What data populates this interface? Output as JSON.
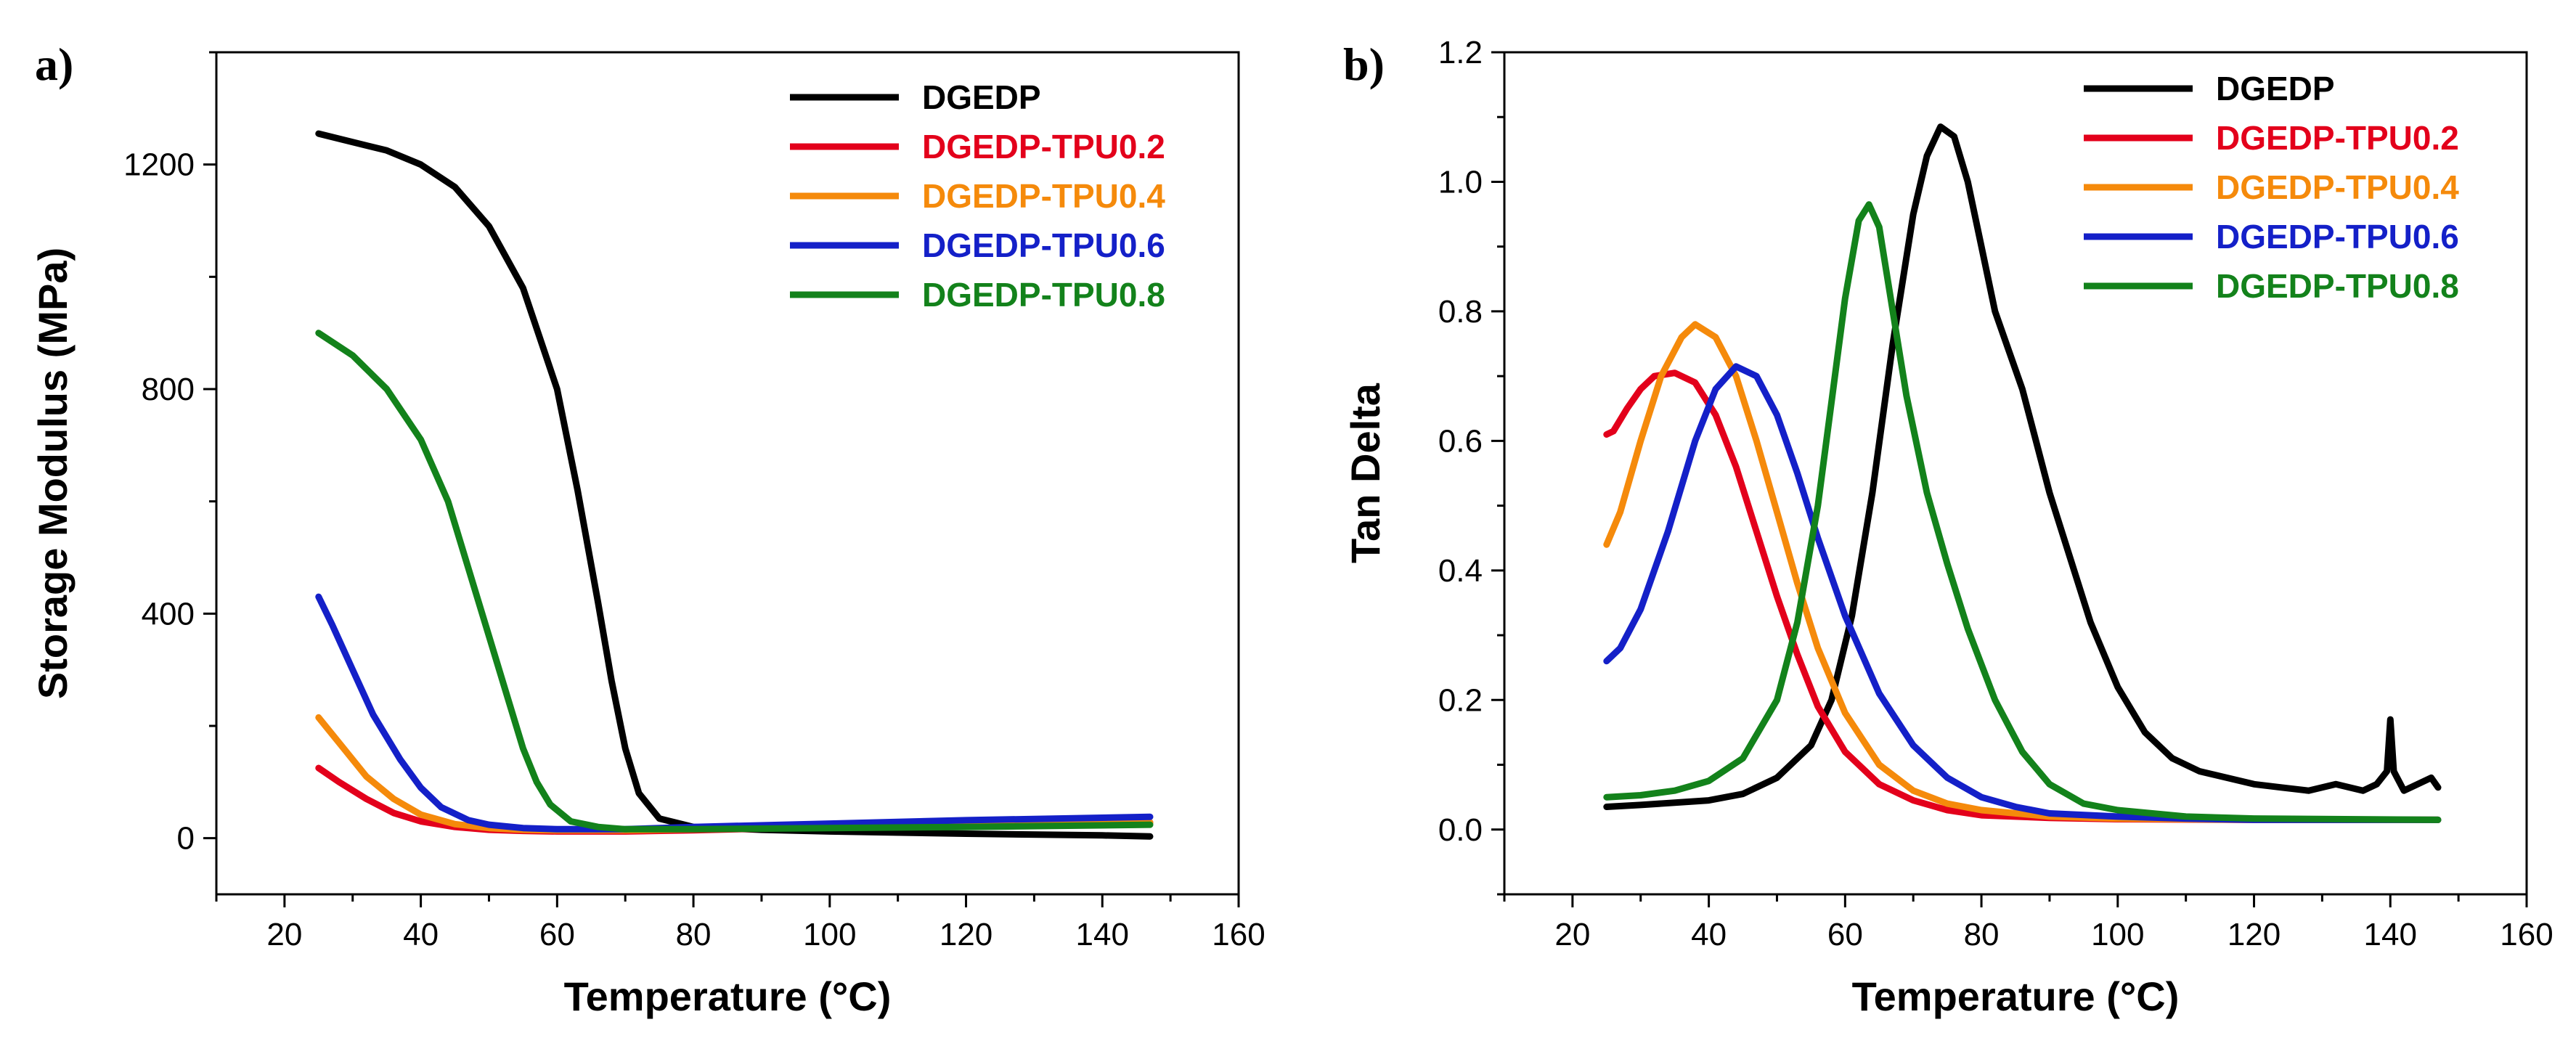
{
  "chart_data": [
    {
      "panel_label": "a)",
      "type": "line",
      "title": "",
      "xlabel": "Temperature (°C)",
      "ylabel": "Storage Modulus (MPa)",
      "xlim": [
        10,
        160
      ],
      "ylim": [
        -100,
        1400
      ],
      "xticks": [
        20,
        40,
        60,
        80,
        100,
        120,
        140,
        160
      ],
      "xtick_labels": [
        "20",
        "40",
        "60",
        "80",
        "100",
        "120",
        "140",
        "160"
      ],
      "yticks": [
        0,
        400,
        800,
        1200
      ],
      "ytick_labels": [
        "0",
        "400",
        "800",
        "1200"
      ],
      "legend_position": "top-right",
      "series": [
        {
          "name": "DGEDP",
          "color": "#000000",
          "x": [
            25,
            30,
            35,
            40,
            45,
            50,
            55,
            60,
            63,
            66,
            68,
            70,
            72,
            75,
            80,
            90,
            100,
            120,
            140,
            147
          ],
          "y": [
            1255,
            1240,
            1225,
            1200,
            1160,
            1090,
            980,
            800,
            620,
            420,
            280,
            160,
            80,
            35,
            20,
            15,
            12,
            8,
            5,
            3
          ]
        },
        {
          "name": "DGEDP-TPU0.2",
          "color": "#e3001b",
          "x": [
            25,
            28,
            32,
            36,
            40,
            45,
            50,
            55,
            60,
            70,
            80,
            100,
            120,
            147
          ],
          "y": [
            125,
            100,
            70,
            45,
            30,
            20,
            15,
            13,
            12,
            12,
            14,
            20,
            24,
            28
          ]
        },
        {
          "name": "DGEDP-TPU0.4",
          "color": "#f58a0b",
          "x": [
            25,
            28,
            32,
            36,
            40,
            45,
            50,
            55,
            60,
            70,
            80,
            100,
            120,
            147
          ],
          "y": [
            215,
            170,
            110,
            70,
            42,
            25,
            18,
            15,
            14,
            14,
            16,
            20,
            24,
            28
          ]
        },
        {
          "name": "DGEDP-TPU0.6",
          "color": "#1420c8",
          "x": [
            25,
            27,
            30,
            33,
            37,
            40,
            43,
            47,
            50,
            55,
            60,
            70,
            80,
            100,
            120,
            147
          ],
          "y": [
            430,
            380,
            300,
            220,
            140,
            90,
            55,
            32,
            24,
            18,
            16,
            16,
            20,
            26,
            32,
            38
          ]
        },
        {
          "name": "DGEDP-TPU0.8",
          "color": "#13821b",
          "x": [
            25,
            30,
            35,
            40,
            44,
            47,
            50,
            53,
            55,
            57,
            59,
            62,
            66,
            70,
            80,
            100,
            120,
            147
          ],
          "y": [
            900,
            860,
            800,
            710,
            600,
            480,
            360,
            240,
            160,
            100,
            60,
            30,
            20,
            16,
            16,
            18,
            20,
            24
          ]
        }
      ]
    },
    {
      "panel_label": "b)",
      "type": "line",
      "title": "",
      "xlabel": "Temperature (°C)",
      "ylabel": "Tan Delta",
      "xlim": [
        10,
        160
      ],
      "ylim": [
        -0.1,
        1.2
      ],
      "xticks": [
        20,
        40,
        60,
        80,
        100,
        120,
        140,
        160
      ],
      "xtick_labels": [
        "20",
        "40",
        "60",
        "80",
        "100",
        "120",
        "140",
        "160"
      ],
      "yticks": [
        0.0,
        0.2,
        0.4,
        0.6,
        0.8,
        1.0,
        1.2
      ],
      "ytick_labels": [
        "0.0",
        "0.2",
        "0.4",
        "0.6",
        "0.8",
        "1.0",
        "1.2"
      ],
      "legend_position": "top-right",
      "series": [
        {
          "name": "DGEDP",
          "color": "#000000",
          "x": [
            25,
            30,
            40,
            45,
            50,
            55,
            58,
            61,
            64,
            67,
            70,
            72,
            74,
            76,
            78,
            80,
            82,
            84,
            86,
            88,
            90,
            93,
            96,
            100,
            104,
            108,
            112,
            116,
            120,
            124,
            128,
            132,
            136,
            138,
            139.5,
            140,
            140.5,
            142,
            144,
            146,
            147
          ],
          "y": [
            0.035,
            0.038,
            0.045,
            0.055,
            0.08,
            0.13,
            0.2,
            0.33,
            0.52,
            0.75,
            0.95,
            1.04,
            1.085,
            1.07,
            1.0,
            0.9,
            0.8,
            0.74,
            0.68,
            0.6,
            0.52,
            0.42,
            0.32,
            0.22,
            0.15,
            0.11,
            0.09,
            0.08,
            0.07,
            0.065,
            0.06,
            0.07,
            0.06,
            0.07,
            0.09,
            0.17,
            0.09,
            0.06,
            0.07,
            0.08,
            0.065
          ]
        },
        {
          "name": "DGEDP-TPU0.2",
          "color": "#e3001b",
          "x": [
            25,
            26,
            28,
            30,
            32,
            35,
            38,
            41,
            44,
            47,
            50,
            53,
            56,
            60,
            65,
            70,
            75,
            80,
            90,
            100,
            120,
            147
          ],
          "y": [
            0.61,
            0.615,
            0.65,
            0.68,
            0.7,
            0.705,
            0.69,
            0.64,
            0.56,
            0.46,
            0.36,
            0.27,
            0.19,
            0.12,
            0.07,
            0.045,
            0.03,
            0.022,
            0.018,
            0.016,
            0.015,
            0.015
          ]
        },
        {
          "name": "DGEDP-TPU0.4",
          "color": "#f58a0b",
          "x": [
            25,
            27,
            30,
            33,
            36,
            38,
            41,
            44,
            47,
            50,
            53,
            56,
            60,
            65,
            70,
            75,
            80,
            90,
            100,
            120,
            147
          ],
          "y": [
            0.44,
            0.49,
            0.6,
            0.7,
            0.76,
            0.78,
            0.76,
            0.7,
            0.6,
            0.49,
            0.38,
            0.28,
            0.18,
            0.1,
            0.06,
            0.04,
            0.03,
            0.02,
            0.017,
            0.015,
            0.015
          ]
        },
        {
          "name": "DGEDP-TPU0.6",
          "color": "#1420c8",
          "x": [
            25,
            27,
            30,
            34,
            38,
            41,
            44,
            47,
            50,
            53,
            56,
            60,
            65,
            70,
            75,
            80,
            85,
            90,
            100,
            110,
            120,
            147
          ],
          "y": [
            0.26,
            0.28,
            0.34,
            0.46,
            0.6,
            0.68,
            0.715,
            0.7,
            0.64,
            0.55,
            0.45,
            0.33,
            0.21,
            0.13,
            0.08,
            0.05,
            0.035,
            0.025,
            0.02,
            0.017,
            0.015,
            0.015
          ]
        },
        {
          "name": "DGEDP-TPU0.8",
          "color": "#13821b",
          "x": [
            25,
            30,
            35,
            40,
            45,
            50,
            53,
            56,
            58,
            60,
            62,
            63.5,
            65,
            67,
            69,
            72,
            75,
            78,
            82,
            86,
            90,
            95,
            100,
            110,
            120,
            147
          ],
          "y": [
            0.05,
            0.053,
            0.06,
            0.075,
            0.11,
            0.2,
            0.32,
            0.5,
            0.66,
            0.82,
            0.94,
            0.965,
            0.93,
            0.8,
            0.67,
            0.52,
            0.41,
            0.31,
            0.2,
            0.12,
            0.07,
            0.04,
            0.03,
            0.02,
            0.017,
            0.015
          ]
        }
      ]
    }
  ]
}
